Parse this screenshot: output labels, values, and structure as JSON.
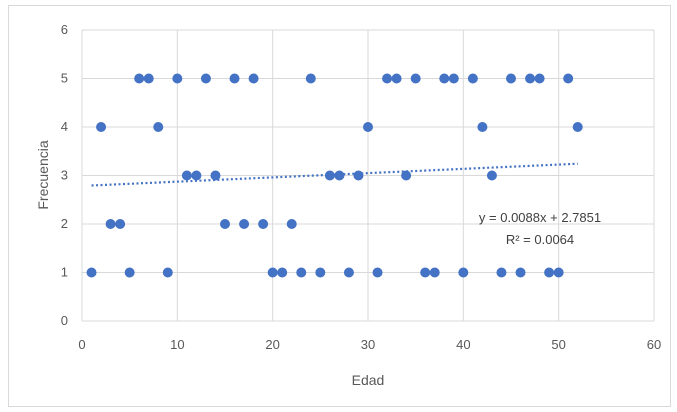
{
  "chart_data": {
    "type": "scatter",
    "xlabel": "Edad",
    "ylabel": "Frecuencia",
    "xlim": [
      0,
      60
    ],
    "ylim": [
      0,
      6
    ],
    "xticks": [
      "0",
      "10",
      "20",
      "30",
      "40",
      "50",
      "60"
    ],
    "yticks": [
      "0",
      "1",
      "2",
      "3",
      "4",
      "5",
      "6"
    ],
    "grid": "vertical and horizontal major gridlines",
    "marker_color": "#4472c4",
    "points": [
      [
        1,
        1
      ],
      [
        2,
        4
      ],
      [
        3,
        2
      ],
      [
        4,
        2
      ],
      [
        5,
        1
      ],
      [
        6,
        5
      ],
      [
        7,
        5
      ],
      [
        8,
        4
      ],
      [
        9,
        1
      ],
      [
        10,
        5
      ],
      [
        11,
        3
      ],
      [
        12,
        3
      ],
      [
        13,
        5
      ],
      [
        14,
        3
      ],
      [
        15,
        2
      ],
      [
        16,
        5
      ],
      [
        17,
        2
      ],
      [
        18,
        5
      ],
      [
        19,
        2
      ],
      [
        20,
        1
      ],
      [
        21,
        1
      ],
      [
        22,
        2
      ],
      [
        23,
        1
      ],
      [
        24,
        5
      ],
      [
        25,
        1
      ],
      [
        26,
        3
      ],
      [
        27,
        3
      ],
      [
        28,
        1
      ],
      [
        29,
        3
      ],
      [
        30,
        4
      ],
      [
        31,
        1
      ],
      [
        32,
        5
      ],
      [
        33,
        5
      ],
      [
        34,
        3
      ],
      [
        35,
        5
      ],
      [
        36,
        1
      ],
      [
        37,
        1
      ],
      [
        38,
        5
      ],
      [
        39,
        5
      ],
      [
        40,
        1
      ],
      [
        41,
        5
      ],
      [
        42,
        4
      ],
      [
        43,
        3
      ],
      [
        44,
        1
      ],
      [
        45,
        5
      ],
      [
        46,
        1
      ],
      [
        47,
        5
      ],
      [
        48,
        5
      ],
      [
        49,
        1
      ],
      [
        50,
        1
      ],
      [
        51,
        5
      ],
      [
        52,
        4
      ]
    ],
    "trendline": {
      "type": "linear",
      "style": "dotted",
      "slope": 0.0088,
      "intercept": 2.7851,
      "x_range": [
        1,
        52
      ],
      "equation_label": "y = 0.0088x + 2.7851",
      "r2_label": "R² = 0.0064"
    }
  }
}
